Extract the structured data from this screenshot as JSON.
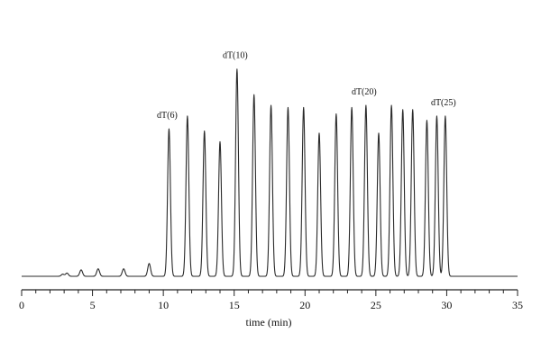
{
  "chart_data": {
    "type": "line",
    "title": "",
    "xlabel": "time (min)",
    "ylabel": "",
    "xlim": [
      0,
      35
    ],
    "ylim": [
      0,
      100
    ],
    "x_ticks": [
      0,
      5,
      10,
      15,
      20,
      25,
      30,
      35
    ],
    "x_tick_labels": [
      "0",
      "5",
      "10",
      "15",
      "20",
      "25",
      "30",
      "35"
    ],
    "grid": false,
    "legend": "none",
    "line_color": "#2a2a2a",
    "baseline": 1.0,
    "series": [
      {
        "peaks": [
          {
            "t": 2.9,
            "h": 2.0
          },
          {
            "t": 3.2,
            "h": 2.5
          },
          {
            "t": 4.2,
            "h": 4.0
          },
          {
            "t": 5.4,
            "h": 4.5
          },
          {
            "t": 7.2,
            "h": 4.5
          },
          {
            "t": 9.0,
            "h": 7.0
          },
          {
            "t": 10.4,
            "h": 70.0
          },
          {
            "t": 11.7,
            "h": 76.0
          },
          {
            "t": 12.9,
            "h": 69.0
          },
          {
            "t": 14.0,
            "h": 64.0
          },
          {
            "t": 15.2,
            "h": 98.0
          },
          {
            "t": 16.4,
            "h": 86.0
          },
          {
            "t": 17.6,
            "h": 81.0
          },
          {
            "t": 18.8,
            "h": 80.0
          },
          {
            "t": 19.9,
            "h": 80.0
          },
          {
            "t": 21.0,
            "h": 68.0
          },
          {
            "t": 22.2,
            "h": 77.0
          },
          {
            "t": 23.3,
            "h": 80.0
          },
          {
            "t": 24.3,
            "h": 81.0
          },
          {
            "t": 25.2,
            "h": 68.0
          },
          {
            "t": 26.1,
            "h": 81.0
          },
          {
            "t": 26.9,
            "h": 79.0
          },
          {
            "t": 27.6,
            "h": 79.0
          },
          {
            "t": 28.6,
            "h": 74.0
          },
          {
            "t": 29.3,
            "h": 76.0
          },
          {
            "t": 29.9,
            "h": 76.0
          },
          {
            "t": 31.5,
            "h": 1.0
          }
        ]
      }
    ],
    "annotations": [
      {
        "text": "dT(6)",
        "t": 10.4,
        "h": 70.0
      },
      {
        "text": "dT(10)",
        "t": 15.2,
        "h": 98.0
      },
      {
        "text": "dT(20)",
        "t": 24.3,
        "h": 81.0
      },
      {
        "text": "dT(25)",
        "t": 29.9,
        "h": 76.0
      }
    ]
  }
}
